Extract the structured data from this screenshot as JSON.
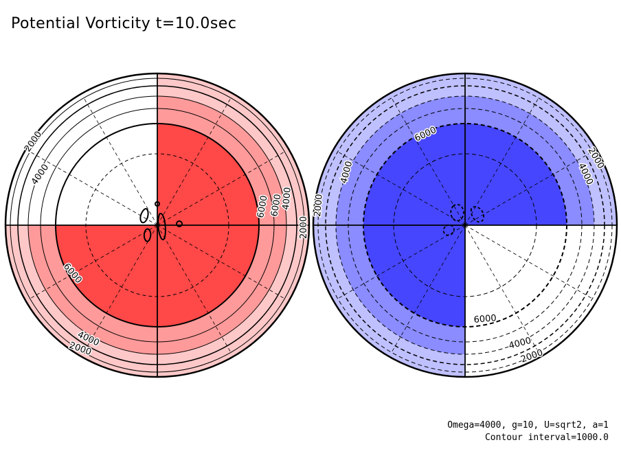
{
  "title": "Potential Vorticity t=10.0sec",
  "params_text": "Omega=4000, g=10, U=sqrt2, a=1",
  "contour_text": "Contour interval=1000.0",
  "colors": {
    "pos_light": "#ffc8c8",
    "pos_mid": "#ff9a9a",
    "pos_dark": "#ff4848",
    "neg_light": "#bfc0ff",
    "neg_mid": "#8a8cff",
    "neg_dark": "#4646ff",
    "white": "#ffffff"
  },
  "left_hemisphere": {
    "sign": "positive",
    "labels": [
      "2000",
      "4000",
      "6000",
      "4000",
      "6000",
      "2000",
      "6000",
      "4000",
      "2000"
    ]
  },
  "right_hemisphere": {
    "sign": "negative",
    "labels": [
      "6000",
      "4000",
      "2000",
      "2000",
      "4000",
      "6000",
      "4000",
      "2000"
    ]
  }
}
